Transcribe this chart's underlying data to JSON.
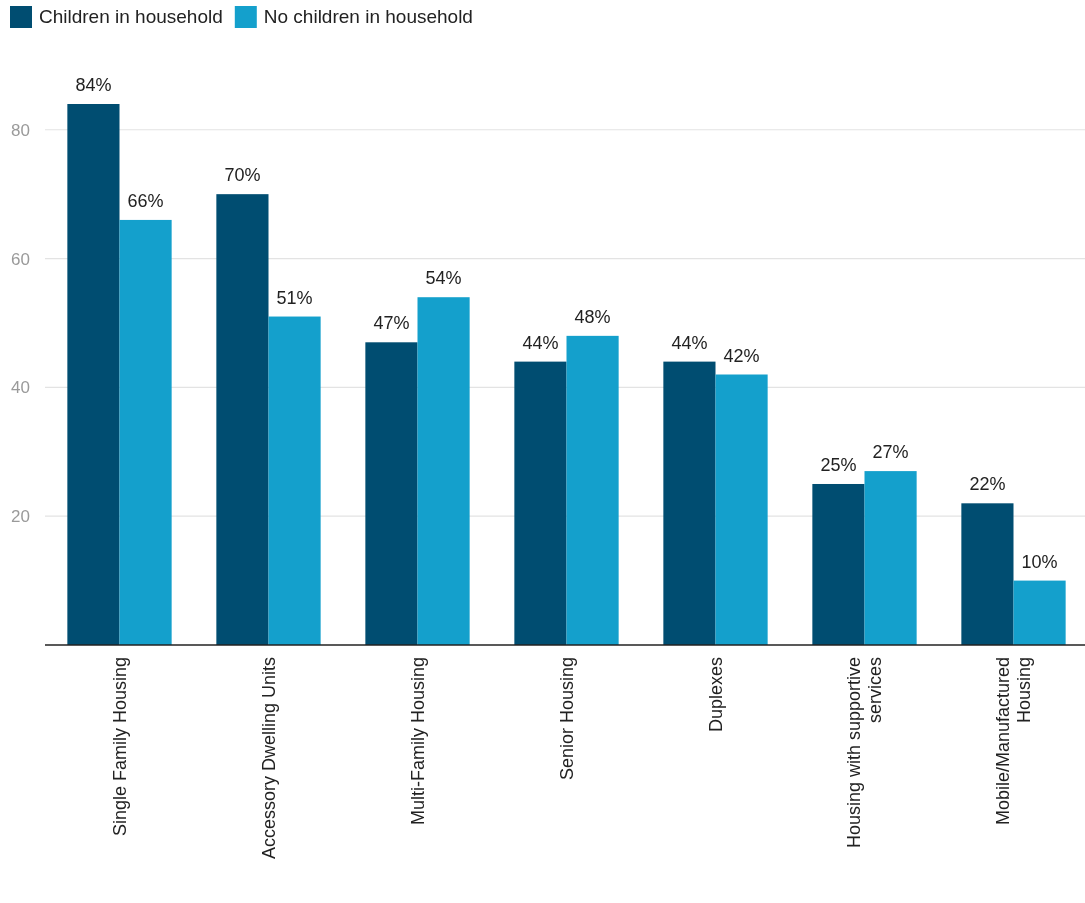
{
  "chart_data": {
    "type": "bar",
    "categories": [
      "Single Family Housing",
      "Accessory Dwelling Units",
      "Multi-Family Housing",
      "Senior Housing",
      "Duplexes",
      "Housing with supportive services",
      "Mobile/Manufactured Housing"
    ],
    "series": [
      {
        "name": "Children in household",
        "color": "#004d71",
        "values": [
          84,
          70,
          47,
          44,
          44,
          25,
          22
        ],
        "value_labels": [
          "84%",
          "70%",
          "47%",
          "44%",
          "44%",
          "25%",
          "22%"
        ]
      },
      {
        "name": "No children in household",
        "color": "#14a0cc",
        "values": [
          66,
          51,
          54,
          48,
          42,
          27,
          10
        ],
        "value_labels": [
          "66%",
          "51%",
          "54%",
          "48%",
          "42%",
          "27%",
          "10%"
        ]
      }
    ],
    "ylim": [
      0,
      84
    ],
    "yticks": [
      20,
      40,
      60,
      80
    ],
    "grid": "y",
    "legend": "top left"
  }
}
